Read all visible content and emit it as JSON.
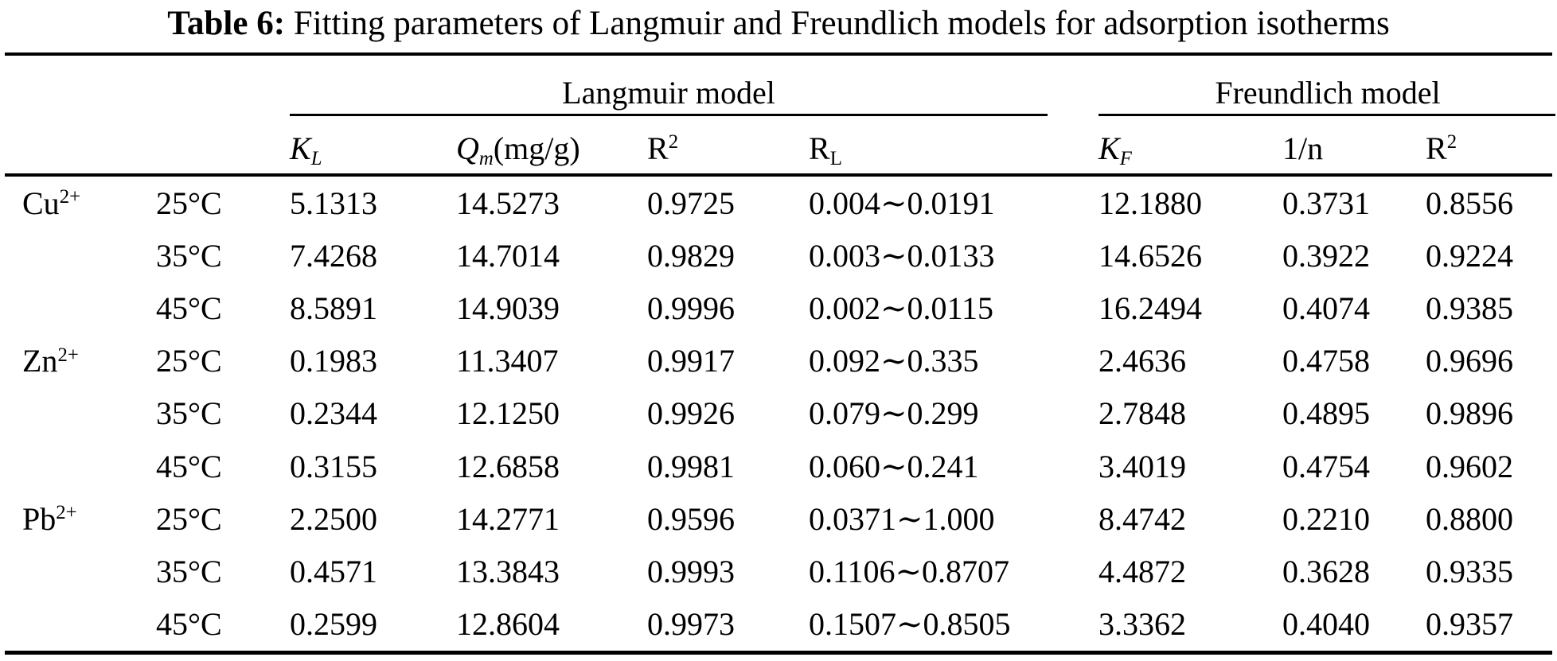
{
  "table": {
    "title_bold": "Table 6:",
    "title_rest": " Fitting parameters of Langmuir and Freundlich models for adsorption isotherms",
    "group_headers": {
      "langmuir": "Langmuir model",
      "freundlich": "Freundlich model"
    },
    "subheaders": {
      "kl_sym": "K",
      "kl_sub": "L",
      "qm_sym": "Q",
      "qm_sub": "m",
      "qm_unit": "(mg/g)",
      "r2_sym": "R",
      "r2_sup": "2",
      "rl_sym": "R",
      "rl_sub": "L",
      "kf_sym": "K",
      "kf_sub": "F",
      "one_over_n": "1/n"
    },
    "rows": [
      {
        "ion": "Cu",
        "charge": "2+",
        "temp": "25°C",
        "kl": "5.1313",
        "qm": "14.5273",
        "r2_langmuir": "0.9725",
        "rl": "0.004∼0.0191",
        "kf": "12.1880",
        "one_over_n": "0.3731",
        "r2_freundlich": "0.8556"
      },
      {
        "ion": "",
        "charge": "",
        "temp": "35°C",
        "kl": "7.4268",
        "qm": "14.7014",
        "r2_langmuir": "0.9829",
        "rl": "0.003∼0.0133",
        "kf": "14.6526",
        "one_over_n": "0.3922",
        "r2_freundlich": "0.9224"
      },
      {
        "ion": "",
        "charge": "",
        "temp": "45°C",
        "kl": "8.5891",
        "qm": "14.9039",
        "r2_langmuir": "0.9996",
        "rl": "0.002∼0.0115",
        "kf": "16.2494",
        "one_over_n": "0.4074",
        "r2_freundlich": "0.9385"
      },
      {
        "ion": "Zn",
        "charge": "2+",
        "temp": "25°C",
        "kl": "0.1983",
        "qm": "11.3407",
        "r2_langmuir": "0.9917",
        "rl": "0.092∼0.335",
        "kf": "2.4636",
        "one_over_n": "0.4758",
        "r2_freundlich": "0.9696"
      },
      {
        "ion": "",
        "charge": "",
        "temp": "35°C",
        "kl": "0.2344",
        "qm": "12.1250",
        "r2_langmuir": "0.9926",
        "rl": "0.079∼0.299",
        "kf": "2.7848",
        "one_over_n": "0.4895",
        "r2_freundlich": "0.9896"
      },
      {
        "ion": "",
        "charge": "",
        "temp": "45°C",
        "kl": "0.3155",
        "qm": "12.6858",
        "r2_langmuir": "0.9981",
        "rl": "0.060∼0.241",
        "kf": "3.4019",
        "one_over_n": "0.4754",
        "r2_freundlich": "0.9602"
      },
      {
        "ion": "Pb",
        "charge": "2+",
        "temp": "25°C",
        "kl": "2.2500",
        "qm": "14.2771",
        "r2_langmuir": "0.9596",
        "rl": "0.0371∼1.000",
        "kf": "8.4742",
        "one_over_n": "0.2210",
        "r2_freundlich": "0.8800"
      },
      {
        "ion": "",
        "charge": "",
        "temp": "35°C",
        "kl": "0.4571",
        "qm": "13.3843",
        "r2_langmuir": "0.9993",
        "rl": "0.1106∼0.8707",
        "kf": "4.4872",
        "one_over_n": "0.3628",
        "r2_freundlich": "0.9335"
      },
      {
        "ion": "",
        "charge": "",
        "temp": "45°C",
        "kl": "0.2599",
        "qm": "12.8604",
        "r2_langmuir": "0.9973",
        "rl": "0.1507∼0.8505",
        "kf": "3.3362",
        "one_over_n": "0.4040",
        "r2_freundlich": "0.9357"
      }
    ],
    "colors": {
      "text": "#000000",
      "background": "#ffffff",
      "rule": "#000000"
    }
  }
}
